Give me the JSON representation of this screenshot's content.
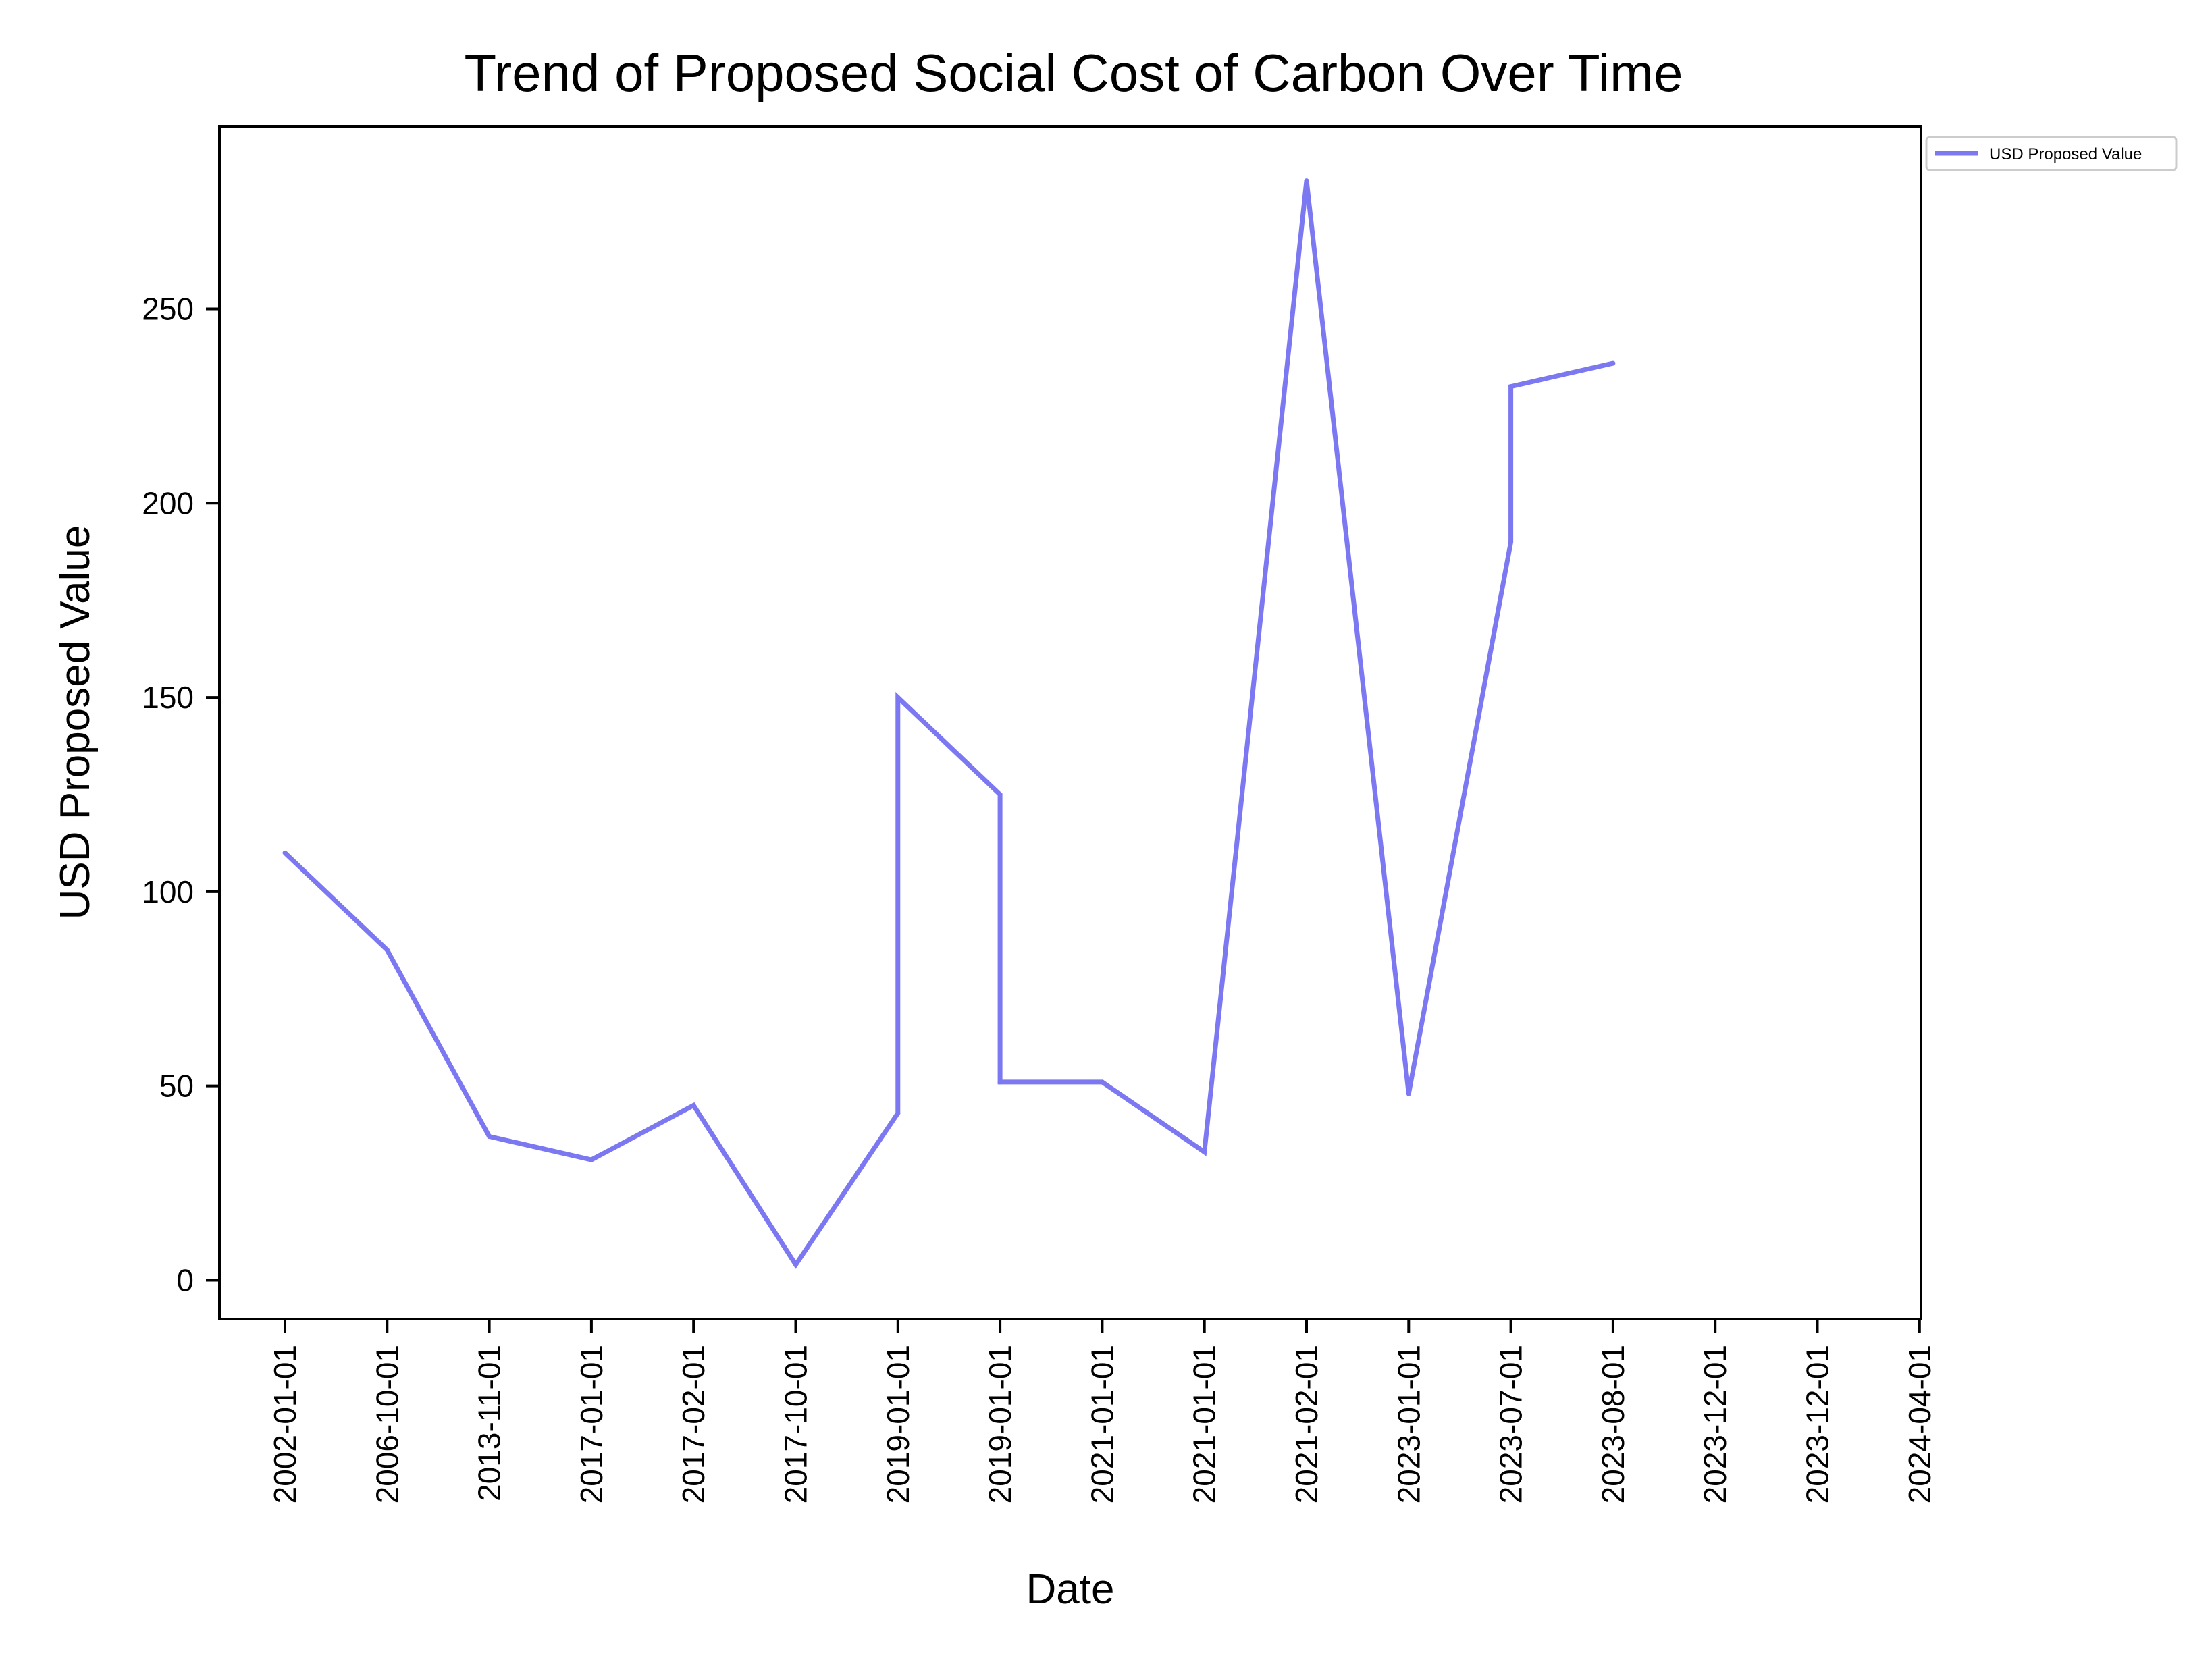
{
  "chart_data": {
    "type": "line",
    "title": "Trend of Proposed Social Cost of Carbon Over Time",
    "xlabel": "Date",
    "ylabel": "USD Proposed Value",
    "categories": [
      "2002-01-01",
      "2006-10-01",
      "2013-11-01",
      "2017-01-01",
      "2017-02-01",
      "2017-10-01",
      "2019-01-01",
      "2019-01-01",
      "2021-01-01",
      "2021-01-01",
      "2021-02-01",
      "2023-01-01",
      "2023-07-01",
      "2023-08-01",
      "2023-12-01",
      "2023-12-01",
      "2024-04-01"
    ],
    "series": [
      {
        "name": "USD Proposed Value",
        "color": "#7b78f2",
        "points": [
          {
            "x": "2002-01-01",
            "y": 110
          },
          {
            "x": "2006-10-01",
            "y": 85
          },
          {
            "x": "2013-11-01",
            "y": 37
          },
          {
            "x": "2017-01-01",
            "y": 31
          },
          {
            "x": "2017-02-01",
            "y": 45
          },
          {
            "x": "2017-10-01",
            "y": 4
          },
          {
            "x": "2019-01-01",
            "y": 43
          },
          {
            "x": "2019-01-01",
            "y": 150
          },
          {
            "x": "2019-01-01",
            "y": 125
          },
          {
            "x": "2019-01-01",
            "y": 51
          },
          {
            "x": "2021-01-01",
            "y": 51
          },
          {
            "x": "2021-01-01",
            "y": 33
          },
          {
            "x": "2021-02-01",
            "y": 283
          },
          {
            "x": "2023-01-01",
            "y": 48
          },
          {
            "x": "2023-07-01",
            "y": 190
          },
          {
            "x": "2023-07-01",
            "y": 230
          },
          {
            "x": "2023-08-01",
            "y": 236
          }
        ]
      }
    ],
    "point_category_index": [
      0,
      1,
      2,
      3,
      4,
      5,
      6,
      6,
      7,
      7,
      8,
      9,
      10,
      11,
      12,
      12,
      13
    ],
    "yticks": [
      0,
      50,
      100,
      150,
      200,
      250
    ],
    "ylim": [
      -10,
      297
    ],
    "grid": false,
    "legend_position": "upper-right-outside"
  }
}
